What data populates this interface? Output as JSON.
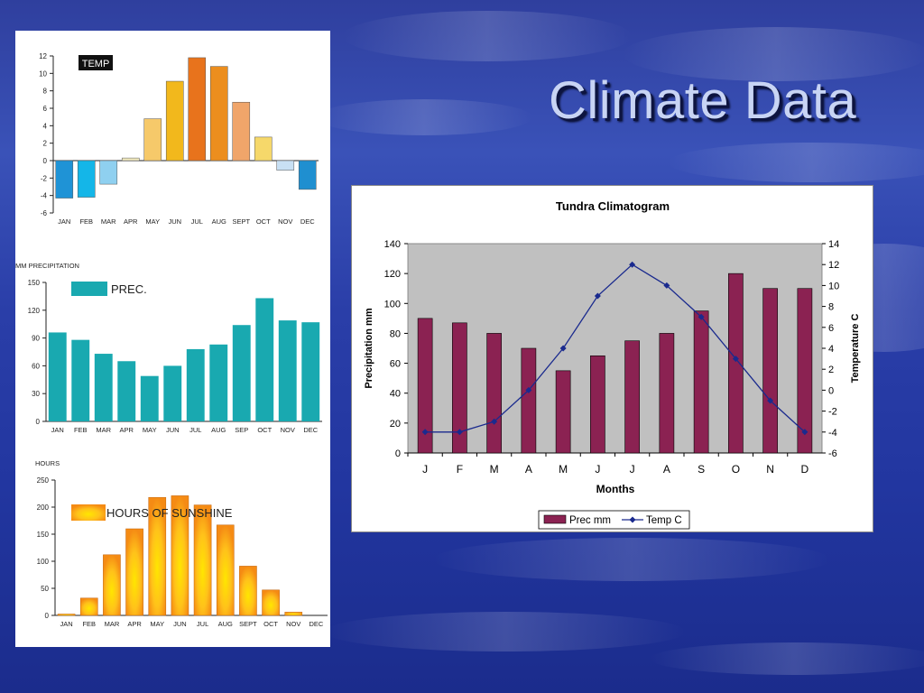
{
  "slide": {
    "title": "Climate Data"
  },
  "chart_data": [
    {
      "type": "bar",
      "legend": "TEMP",
      "categories": [
        "JAN",
        "FEB",
        "MAR",
        "APR",
        "MAY",
        "JUN",
        "JUL",
        "AUG",
        "SEPT",
        "OCT",
        "NOV",
        "DEC"
      ],
      "values": [
        -4.3,
        -4.2,
        -2.7,
        0.3,
        4.8,
        9.1,
        11.8,
        10.8,
        6.7,
        2.7,
        -1.1,
        -3.3
      ],
      "colors": [
        "#1f93d6",
        "#14b6e8",
        "#8fd0f0",
        "#f4ecc0",
        "#f6c96a",
        "#f2b81c",
        "#e8731c",
        "#ec8e1e",
        "#f0a56a",
        "#f6d86a",
        "#c8e0f4",
        "#1f8fd0"
      ],
      "yticks": [
        "12",
        "10",
        "8",
        "6",
        "4",
        "2",
        "0",
        "-2",
        "-4",
        "-6"
      ],
      "ylim": [
        -6,
        12
      ]
    },
    {
      "type": "bar",
      "ylabel": "MM PRECIPITATION",
      "legend": "PREC.",
      "categories": [
        "JAN",
        "FEB",
        "MAR",
        "APR",
        "MAY",
        "JUN",
        "JUL",
        "AUG",
        "SEP",
        "OCT",
        "NOV",
        "DEC"
      ],
      "values": [
        96,
        88,
        73,
        65,
        49,
        60,
        78,
        83,
        104,
        133,
        109,
        107
      ],
      "color": "#19a9b0",
      "yticks": [
        "150",
        "120",
        "90",
        "60",
        "30",
        "0"
      ],
      "ylim": [
        0,
        150
      ]
    },
    {
      "type": "bar",
      "ylabel": "HOURS",
      "legend": "HOURS OF SUNSHINE",
      "categories": [
        "JAN",
        "FEB",
        "MAR",
        "APR",
        "MAY",
        "JUN",
        "JUL",
        "AUG",
        "SEPT",
        "OCT",
        "NOV",
        "DEC"
      ],
      "values": [
        2,
        32,
        112,
        160,
        218,
        221,
        204,
        167,
        91,
        47,
        6,
        0
      ],
      "yticks": [
        "250",
        "200",
        "150",
        "100",
        "50",
        "0"
      ],
      "ylim": [
        0,
        250
      ]
    },
    {
      "type": "bar+line",
      "title": "Tundra Climatogram",
      "xlabel": "Months",
      "ylabel": "Precipitation mm",
      "y2label": "Temperature C",
      "categories": [
        "J",
        "F",
        "M",
        "A",
        "M",
        "J",
        "J",
        "A",
        "S",
        "O",
        "N",
        "D"
      ],
      "series": [
        {
          "name": "Prec mm",
          "type": "bar",
          "axis": "left",
          "color": "#8b2252",
          "values": [
            90,
            87,
            80,
            70,
            55,
            65,
            75,
            80,
            95,
            120,
            110,
            110
          ]
        },
        {
          "name": "Temp C",
          "type": "line",
          "axis": "right",
          "color": "#1a2a8e",
          "values": [
            -4,
            -4,
            -3,
            0,
            4,
            9,
            12,
            10,
            7,
            3,
            -1,
            -4
          ]
        }
      ],
      "yticks": [
        "0",
        "20",
        "40",
        "60",
        "80",
        "100",
        "120",
        "140"
      ],
      "y2ticks": [
        "-6",
        "-4",
        "-2",
        "0",
        "2",
        "4",
        "6",
        "8",
        "10",
        "12",
        "14"
      ],
      "ylim": [
        0,
        140
      ],
      "y2lim": [
        -6,
        14
      ],
      "background": "#c0c0c0"
    }
  ]
}
